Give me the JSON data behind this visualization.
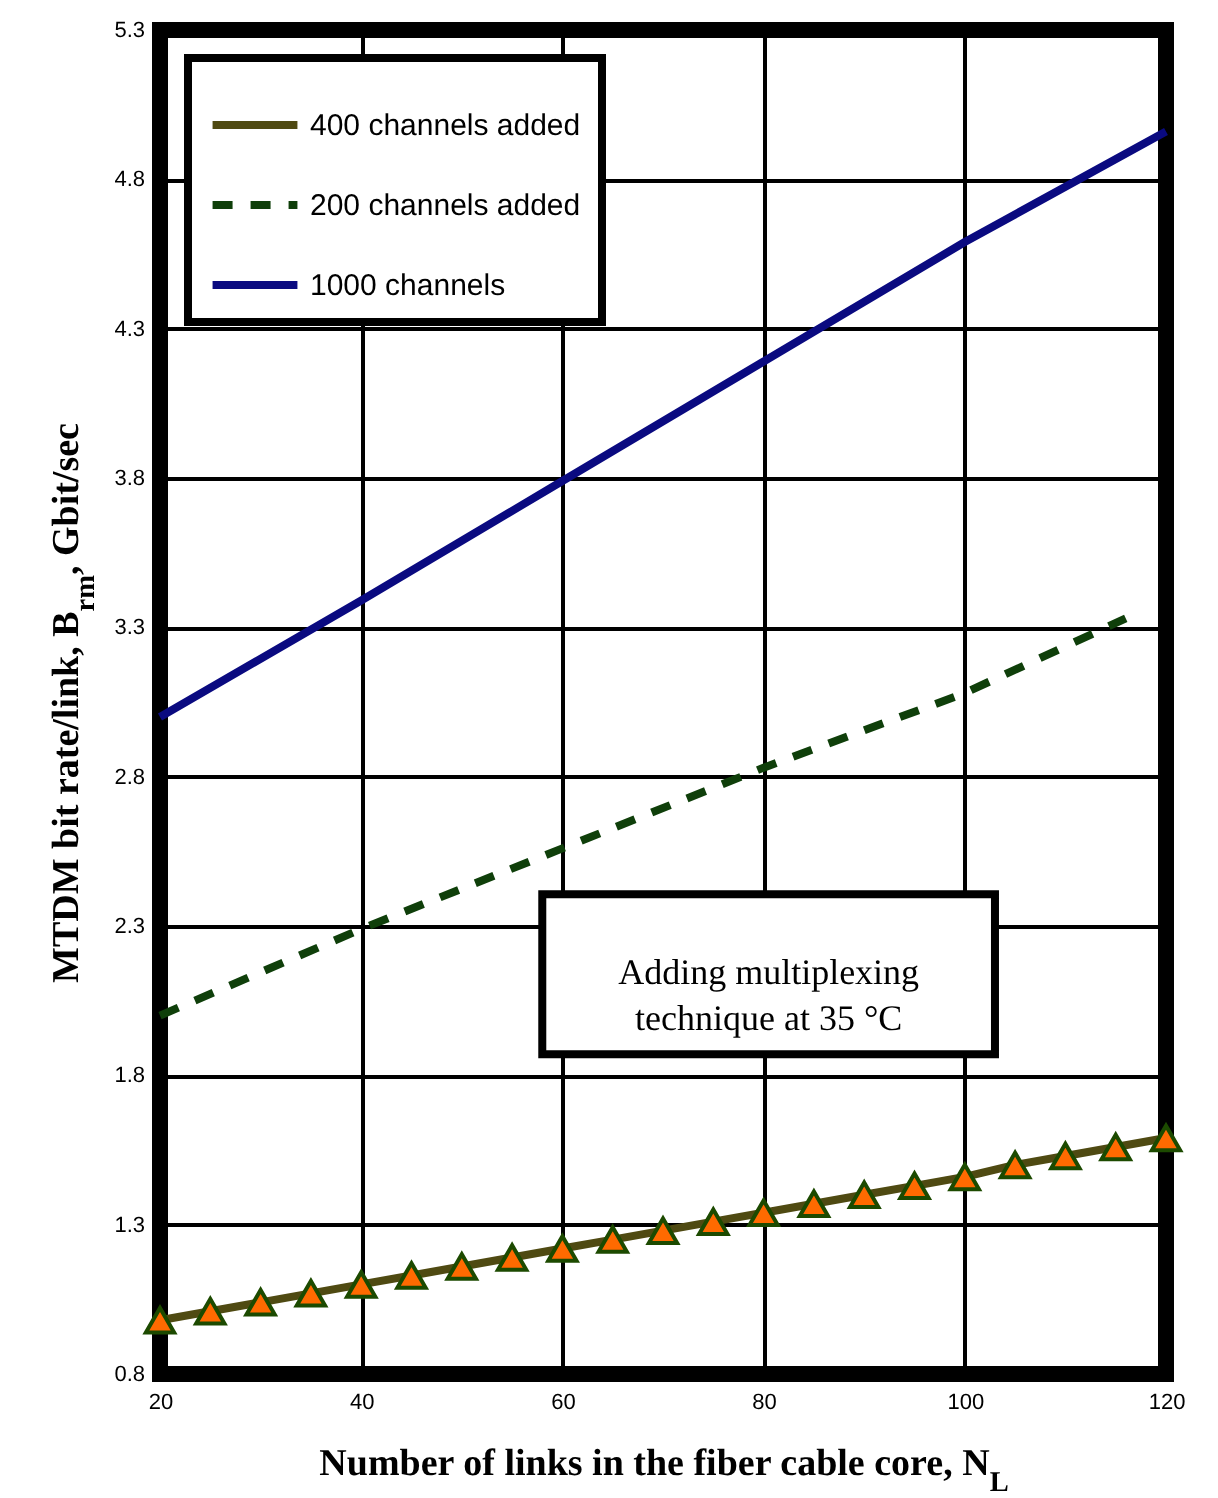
{
  "chart_data": {
    "type": "line",
    "xlabel": "Number of links in the fiber cable core, N$_{L}$",
    "ylabel": "MTDM bit rate/link, B$_{rm}$, Gbit/sec",
    "annotations": [
      "Adding multiplexing\ntechnique at  35 °C"
    ],
    "xlim": [
      20,
      120
    ],
    "xticks": [
      20,
      40,
      60,
      80,
      100,
      120
    ],
    "ylim": [
      0.8,
      5.3
    ],
    "yticks": [
      0.8,
      1.3,
      1.8,
      2.3,
      2.8,
      3.3,
      3.8,
      4.3,
      4.8,
      5.3
    ],
    "grid": true,
    "legend": "top left",
    "series": [
      {
        "name": "400 channels added",
        "color": "#4f4a12",
        "marker": "triangle",
        "line_style": "solid",
        "x": [
          20,
          25,
          30,
          35,
          40,
          45,
          50,
          55,
          60,
          65,
          70,
          75,
          80,
          85,
          90,
          95,
          100,
          105,
          110,
          115,
          120
        ],
        "values": [
          0.98,
          1.01,
          1.04,
          1.07,
          1.1,
          1.13,
          1.16,
          1.19,
          1.22,
          1.25,
          1.28,
          1.31,
          1.34,
          1.37,
          1.4,
          1.43,
          1.46,
          1.5,
          1.53,
          1.56,
          1.59
        ]
      },
      {
        "name": "200 channels added",
        "color": "#0f3f0a",
        "marker": "none",
        "line_style": "dashed",
        "x": [
          20,
          40,
          60,
          80,
          100,
          116
        ],
        "values": [
          2.0,
          2.29,
          2.56,
          2.83,
          3.08,
          3.33
        ]
      },
      {
        "name": "1000 channels",
        "color": "#0a0a80",
        "marker": "none",
        "line_style": "solid",
        "x": [
          20,
          40,
          60,
          80,
          100,
          120
        ],
        "values": [
          3.0,
          3.39,
          3.79,
          4.19,
          4.59,
          4.96
        ]
      }
    ]
  }
}
